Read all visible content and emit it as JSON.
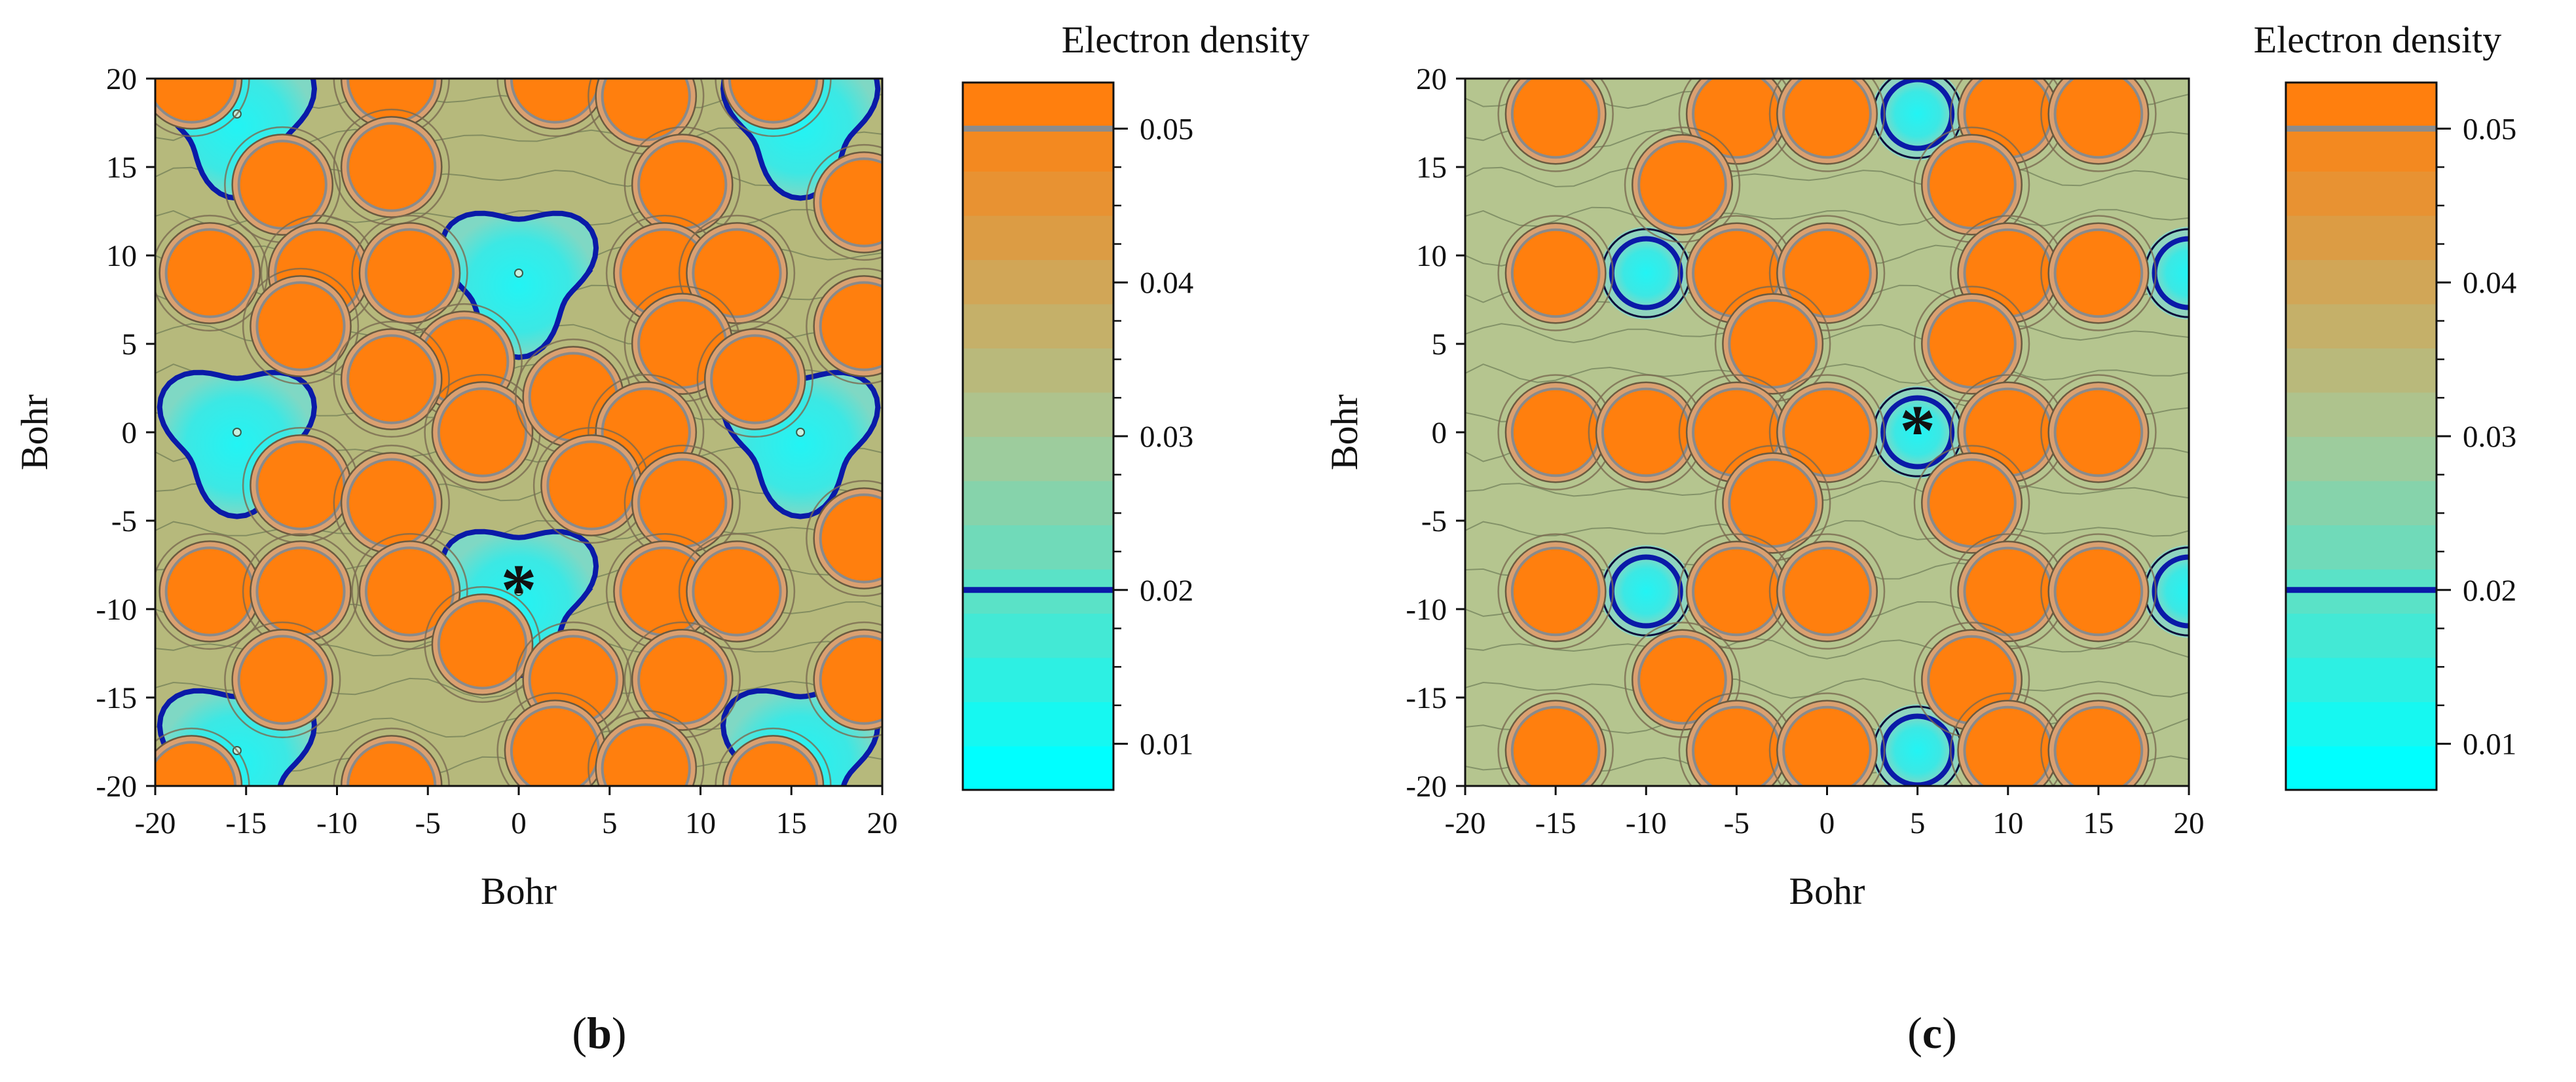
{
  "figure": {
    "description": "Electron density contour maps, two panels"
  },
  "chart_data": [
    {
      "type": "contour",
      "panel_label": "b",
      "xlabel": "Bohr",
      "ylabel": "Bohr",
      "xlim": [
        -20,
        20
      ],
      "ylim": [
        -20,
        20
      ],
      "x_ticks": [
        -20,
        -15,
        -10,
        -5,
        0,
        5,
        10,
        15,
        20
      ],
      "y_ticks": [
        20,
        15,
        10,
        5,
        0,
        -5,
        -10,
        -15,
        -20
      ],
      "x_tick_labels": [
        "-20",
        "-15",
        "-10",
        "-5",
        "0",
        "5",
        "10",
        "15",
        "20"
      ],
      "y_tick_labels": [
        "20",
        "15",
        "10",
        "5",
        "0",
        "-5",
        "-10",
        "-15",
        "-20"
      ],
      "marker": {
        "symbol": "*",
        "x": 0,
        "y": -9
      },
      "colorbar": {
        "title": "Electron density",
        "range": [
          0.007,
          0.053
        ],
        "ticks": [
          0.05,
          0.04,
          0.03,
          0.02,
          0.01
        ],
        "tick_labels": [
          "0.05",
          "0.04",
          "0.03",
          "0.02",
          "0.01"
        ],
        "highlight_levels": [
          {
            "value": 0.05,
            "color": "#8c8c8c"
          },
          {
            "value": 0.02,
            "color": "#0a1aa8"
          }
        ],
        "color_low": "#00ffff",
        "color_mid": "#a8c896",
        "color_high": "#ff7f0e"
      },
      "atoms_high_density": [
        {
          "x": -18,
          "y": 20
        },
        {
          "x": -7,
          "y": 20
        },
        {
          "x": 2,
          "y": 20
        },
        {
          "x": 7,
          "y": 19
        },
        {
          "x": 14,
          "y": 20
        },
        {
          "x": -13,
          "y": 14
        },
        {
          "x": -7,
          "y": 15
        },
        {
          "x": 9,
          "y": 14
        },
        {
          "x": 19,
          "y": 13
        },
        {
          "x": -17,
          "y": 9
        },
        {
          "x": -11,
          "y": 9
        },
        {
          "x": -6,
          "y": 9
        },
        {
          "x": 8,
          "y": 9
        },
        {
          "x": 12,
          "y": 9
        },
        {
          "x": -12,
          "y": 6
        },
        {
          "x": -3,
          "y": 4
        },
        {
          "x": 9,
          "y": 5
        },
        {
          "x": 19,
          "y": 6
        },
        {
          "x": -7,
          "y": 3
        },
        {
          "x": -2,
          "y": 0
        },
        {
          "x": 3,
          "y": 2
        },
        {
          "x": 7,
          "y": 0
        },
        {
          "x": 13,
          "y": 3
        },
        {
          "x": -12,
          "y": -3
        },
        {
          "x": -7,
          "y": -4
        },
        {
          "x": 4,
          "y": -3
        },
        {
          "x": 9,
          "y": -4
        },
        {
          "x": 19,
          "y": -6
        },
        {
          "x": -17,
          "y": -9
        },
        {
          "x": -12,
          "y": -9
        },
        {
          "x": -6,
          "y": -9
        },
        {
          "x": 8,
          "y": -9
        },
        {
          "x": 12,
          "y": -9
        },
        {
          "x": -13,
          "y": -14
        },
        {
          "x": -2,
          "y": -12
        },
        {
          "x": 3,
          "y": -14
        },
        {
          "x": 9,
          "y": -14
        },
        {
          "x": 19,
          "y": -14
        },
        {
          "x": -18,
          "y": -20
        },
        {
          "x": -7,
          "y": -20
        },
        {
          "x": 2,
          "y": -18
        },
        {
          "x": 7,
          "y": -19
        },
        {
          "x": 14,
          "y": -20
        }
      ],
      "voids_low_density": [
        {
          "x": -15.5,
          "y": 18
        },
        {
          "x": 15.5,
          "y": 18
        },
        {
          "x": 0,
          "y": 9
        },
        {
          "x": -15.5,
          "y": 0
        },
        {
          "x": 15.5,
          "y": 0
        },
        {
          "x": 0,
          "y": -9
        },
        {
          "x": -15.5,
          "y": -18
        },
        {
          "x": 15.5,
          "y": -18
        }
      ]
    },
    {
      "type": "contour",
      "panel_label": "c",
      "xlabel": "Bohr",
      "ylabel": "Bohr",
      "xlim": [
        -20,
        20
      ],
      "ylim": [
        -20,
        20
      ],
      "x_ticks": [
        -20,
        -15,
        -10,
        -5,
        0,
        5,
        10,
        15,
        20
      ],
      "y_ticks": [
        20,
        15,
        10,
        5,
        0,
        -5,
        -10,
        -15,
        -20
      ],
      "x_tick_labels": [
        "-20",
        "-15",
        "-10",
        "-5",
        "0",
        "5",
        "10",
        "15",
        "20"
      ],
      "y_tick_labels": [
        "20",
        "15",
        "10",
        "5",
        "0",
        "-5",
        "-10",
        "-15",
        "-20"
      ],
      "marker": {
        "symbol": "*",
        "x": 5,
        "y": 0
      },
      "colorbar": {
        "title": "Electron density",
        "range": [
          0.007,
          0.053
        ],
        "ticks": [
          0.05,
          0.04,
          0.03,
          0.02,
          0.01
        ],
        "tick_labels": [
          "0.05",
          "0.04",
          "0.03",
          "0.02",
          "0.01"
        ],
        "highlight_levels": [
          {
            "value": 0.05,
            "color": "#8c8c8c"
          },
          {
            "value": 0.02,
            "color": "#0a1aa8"
          }
        ],
        "color_low": "#00ffff",
        "color_mid": "#a8c896",
        "color_high": "#ff7f0e"
      },
      "atoms_high_density": [
        {
          "x": -15,
          "y": 18
        },
        {
          "x": -5,
          "y": 18
        },
        {
          "x": 0,
          "y": 18
        },
        {
          "x": 10,
          "y": 18
        },
        {
          "x": 15,
          "y": 18
        },
        {
          "x": -8,
          "y": 14
        },
        {
          "x": 8,
          "y": 14
        },
        {
          "x": -15,
          "y": 9
        },
        {
          "x": -5,
          "y": 9
        },
        {
          "x": 0,
          "y": 9
        },
        {
          "x": 10,
          "y": 9
        },
        {
          "x": 15,
          "y": 9
        },
        {
          "x": -3,
          "y": 5
        },
        {
          "x": 8,
          "y": 5
        },
        {
          "x": -15,
          "y": 0
        },
        {
          "x": -10,
          "y": 0
        },
        {
          "x": -5,
          "y": 0
        },
        {
          "x": 0,
          "y": 0
        },
        {
          "x": 10,
          "y": 0
        },
        {
          "x": 15,
          "y": 0
        },
        {
          "x": -3,
          "y": -4
        },
        {
          "x": 8,
          "y": -4
        },
        {
          "x": -15,
          "y": -9
        },
        {
          "x": -5,
          "y": -9
        },
        {
          "x": 0,
          "y": -9
        },
        {
          "x": 10,
          "y": -9
        },
        {
          "x": 15,
          "y": -9
        },
        {
          "x": -8,
          "y": -14
        },
        {
          "x": 8,
          "y": -14
        },
        {
          "x": -15,
          "y": -18
        },
        {
          "x": -5,
          "y": -18
        },
        {
          "x": 0,
          "y": -18
        },
        {
          "x": 10,
          "y": -18
        },
        {
          "x": 15,
          "y": -18
        }
      ],
      "voids_low_density": [
        {
          "x": 5,
          "y": 18
        },
        {
          "x": -10,
          "y": 9
        },
        {
          "x": 20,
          "y": 9
        },
        {
          "x": 5,
          "y": 0
        },
        {
          "x": -10,
          "y": -9
        },
        {
          "x": 20,
          "y": -9
        },
        {
          "x": 5,
          "y": -18
        }
      ]
    }
  ]
}
